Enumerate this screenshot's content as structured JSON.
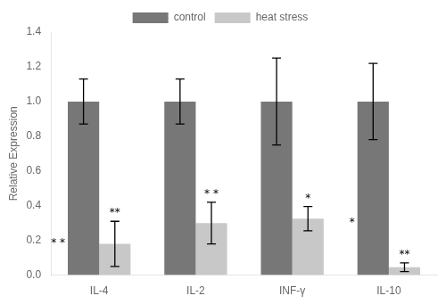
{
  "chart_data": {
    "type": "bar",
    "categories": [
      "IL-4",
      "IL-2",
      "INF-γ",
      "IL-10"
    ],
    "series": [
      {
        "name": "control",
        "color": "#777777",
        "values": [
          1.0,
          1.0,
          1.0,
          1.0
        ],
        "errors": [
          0.13,
          0.13,
          0.25,
          0.22
        ]
      },
      {
        "name": "heat stress",
        "color": "#c8c8c8",
        "values": [
          0.18,
          0.3,
          0.325,
          0.045
        ],
        "errors": [
          0.13,
          0.12,
          0.07,
          0.025
        ]
      }
    ],
    "ylabel": "Relative Expression",
    "ylim": [
      0,
      1.4
    ],
    "yticks": [
      {
        "value": 0,
        "label": "0.0"
      },
      0.2,
      0.4,
      0.6,
      0.8,
      {
        "value": 1,
        "label": "1.0"
      },
      1.2,
      1.4
    ],
    "grid": false,
    "legend": "top",
    "annotations": [
      {
        "text": "* *",
        "category": "IL-4",
        "series": "control",
        "y": 0.185
      },
      {
        "text": "**",
        "category": "IL-4",
        "series": "heat stress"
      },
      {
        "text": "* *",
        "category": "IL-2",
        "series": "heat stress"
      },
      {
        "text": "*",
        "category": "INF-γ",
        "series": "heat stress"
      },
      {
        "text": "*",
        "category": "IL-10",
        "series": "control",
        "y": 0.3
      },
      {
        "text": "**",
        "category": "IL-10",
        "series": "heat stress"
      }
    ]
  }
}
